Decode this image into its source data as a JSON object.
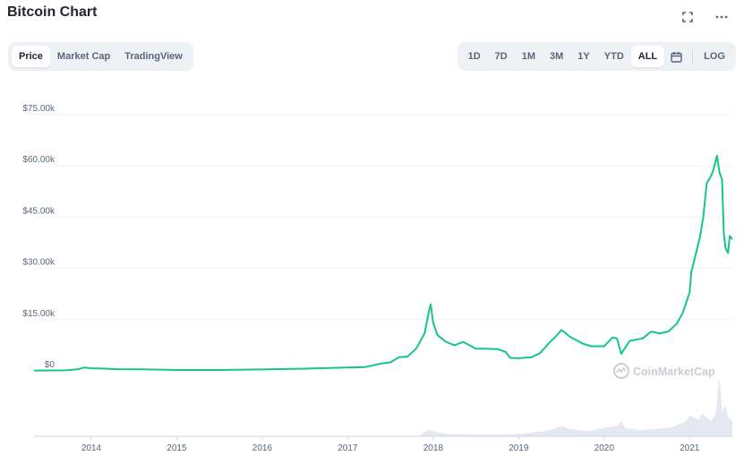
{
  "title": "Bitcoin Chart",
  "top_icons": [
    "expand-icon",
    "more-icon"
  ],
  "metric_tabs": [
    {
      "label": "Price",
      "active": true
    },
    {
      "label": "Market Cap",
      "active": false
    },
    {
      "label": "TradingView",
      "active": false
    }
  ],
  "range_tabs": [
    {
      "label": "1D",
      "active": false
    },
    {
      "label": "7D",
      "active": false
    },
    {
      "label": "1M",
      "active": false
    },
    {
      "label": "3M",
      "active": false
    },
    {
      "label": "1Y",
      "active": false
    },
    {
      "label": "YTD",
      "active": false
    },
    {
      "label": "ALL",
      "active": true
    }
  ],
  "calendar_icon": "calendar-icon",
  "log_label": "LOG",
  "watermark": "CoinMarketCap",
  "colors": {
    "line": "#16c784",
    "grid": "#eff2f5",
    "volume": "#cfd6e4",
    "text": "#58667e"
  },
  "chart_data": {
    "type": "line",
    "title": "Bitcoin Chart",
    "xlabel": "",
    "ylabel": "",
    "xlim": [
      2013.33,
      2021.5
    ],
    "ylim": [
      0,
      75000
    ],
    "y_ticks": [
      {
        "value": 75000,
        "label": "$75.00k"
      },
      {
        "value": 60000,
        "label": "$60.00k"
      },
      {
        "value": 45000,
        "label": "$45.00k"
      },
      {
        "value": 30000,
        "label": "$30.00k"
      },
      {
        "value": 15000,
        "label": "$15.00k"
      },
      {
        "value": 0,
        "label": "$0"
      }
    ],
    "x_ticks": [
      {
        "value": 2014,
        "label": "2014"
      },
      {
        "value": 2015,
        "label": "2015"
      },
      {
        "value": 2016,
        "label": "2016"
      },
      {
        "value": 2017,
        "label": "2017"
      },
      {
        "value": 2018,
        "label": "2018"
      },
      {
        "value": 2019,
        "label": "2019"
      },
      {
        "value": 2020,
        "label": "2020"
      },
      {
        "value": 2021,
        "label": "2021"
      }
    ],
    "grid": true,
    "series": [
      {
        "x": [
          2013.33,
          2013.5,
          2013.7,
          2013.85,
          2013.92,
          2014.0,
          2014.1,
          2014.3,
          2014.6,
          2015.0,
          2015.5,
          2016.0,
          2016.5,
          2017.0,
          2017.2,
          2017.4,
          2017.5,
          2017.6,
          2017.7,
          2017.8,
          2017.9,
          2017.95,
          2017.97,
          2018.0,
          2018.05,
          2018.1,
          2018.15,
          2018.25,
          2018.35,
          2018.5,
          2018.6,
          2018.75,
          2018.85,
          2018.9,
          2019.0,
          2019.15,
          2019.25,
          2019.35,
          2019.45,
          2019.5,
          2019.6,
          2019.75,
          2019.85,
          2020.0,
          2020.1,
          2020.15,
          2020.2,
          2020.3,
          2020.45,
          2020.55,
          2020.65,
          2020.75,
          2020.85,
          2020.92,
          2021.0,
          2021.02,
          2021.06,
          2021.1,
          2021.12,
          2021.16,
          2021.2,
          2021.25,
          2021.28,
          2021.32,
          2021.35,
          2021.38,
          2021.4,
          2021.42,
          2021.45,
          2021.47,
          2021.5
        ],
        "values": [
          100,
          120,
          150,
          500,
          1000,
          750,
          700,
          500,
          450,
          250,
          250,
          420,
          650,
          1000,
          1100,
          2200,
          2500,
          4000,
          4200,
          6500,
          11000,
          17500,
          19500,
          14000,
          10500,
          9500,
          8500,
          7500,
          8500,
          6500,
          6500,
          6400,
          5500,
          3800,
          3700,
          4000,
          5200,
          8000,
          10500,
          12000,
          10000,
          8000,
          7200,
          7200,
          9800,
          9500,
          5000,
          8800,
          9500,
          11500,
          11000,
          11500,
          13800,
          17000,
          23000,
          29000,
          33000,
          37000,
          39000,
          45000,
          55000,
          57000,
          59000,
          63000,
          58000,
          56000,
          40000,
          36000,
          34500,
          39500,
          38500
        ]
      },
      {
        "name": "volume",
        "x": [
          2017.85,
          2017.9,
          2017.95,
          2018.0,
          2018.05,
          2018.1,
          2018.2,
          2018.3,
          2018.5,
          2018.8,
          2018.95,
          2019.1,
          2019.3,
          2019.45,
          2019.5,
          2019.6,
          2019.8,
          2020.0,
          2020.15,
          2020.2,
          2020.25,
          2020.4,
          2020.6,
          2020.8,
          2020.95,
          2021.0,
          2021.05,
          2021.1,
          2021.15,
          2021.2,
          2021.25,
          2021.3,
          2021.35,
          2021.38,
          2021.42,
          2021.45,
          2021.5
        ],
        "values": [
          2,
          4,
          6,
          5,
          4,
          3,
          2,
          2,
          1.5,
          1.5,
          2,
          3,
          5,
          8,
          10,
          7,
          5,
          8,
          10,
          14,
          8,
          6,
          7,
          9,
          14,
          20,
          18,
          16,
          22,
          18,
          15,
          20,
          56,
          25,
          30,
          18,
          15
        ]
      }
    ]
  }
}
